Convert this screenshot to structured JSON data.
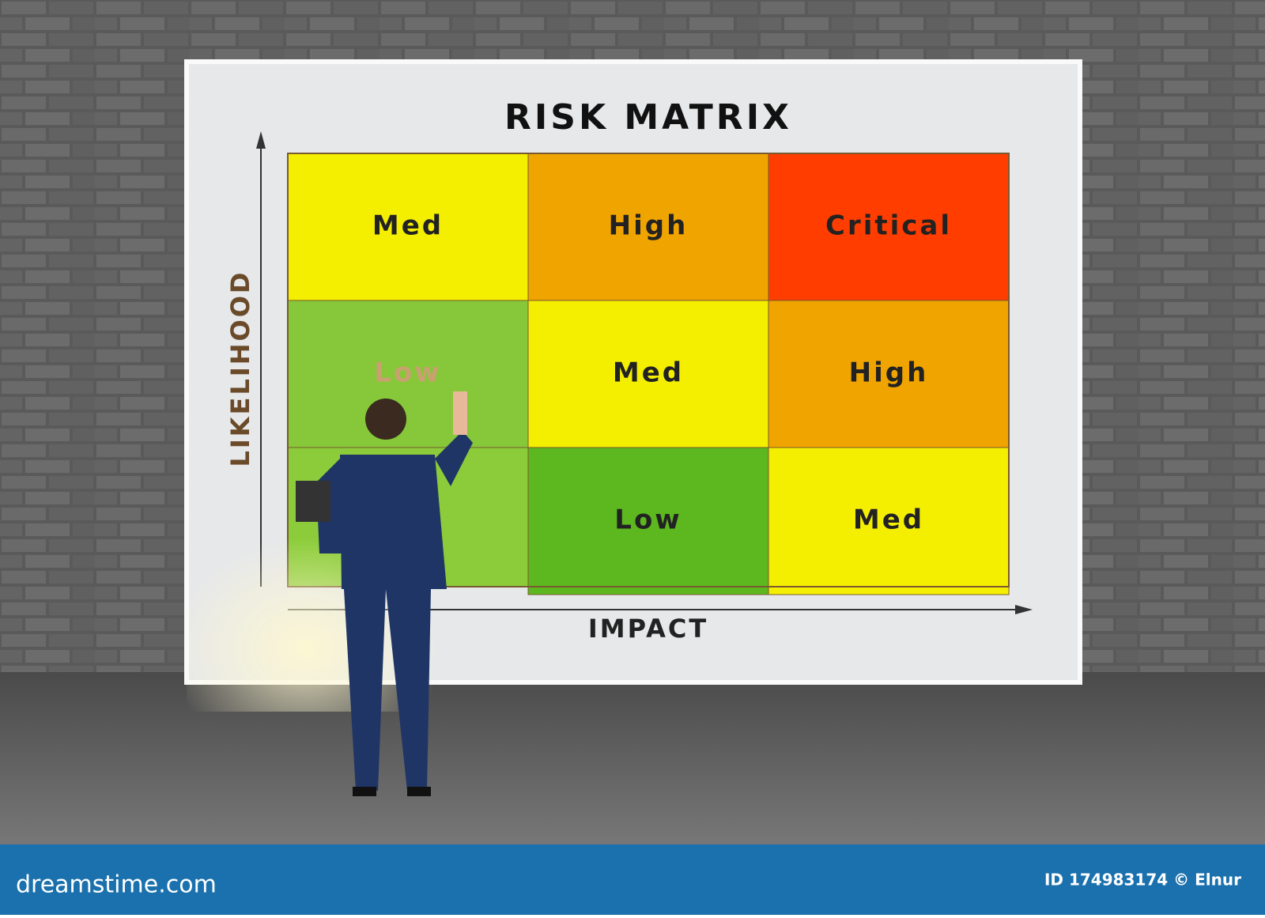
{
  "title": "RISK MATRIX",
  "y_axis_label": "LIKELIHOOD",
  "x_axis_label": "IMPACT",
  "matrix": {
    "cells": [
      {
        "row": 0,
        "col": 0,
        "label": "Med",
        "color": "#f4ee00"
      },
      {
        "row": 0,
        "col": 1,
        "label": "High",
        "color": "#f0a400"
      },
      {
        "row": 0,
        "col": 2,
        "label": "Critical",
        "color": "#ff3d00"
      },
      {
        "row": 1,
        "col": 0,
        "label": "Low",
        "color": "#86c83a"
      },
      {
        "row": 1,
        "col": 1,
        "label": "Med",
        "color": "#f4ee00"
      },
      {
        "row": 1,
        "col": 2,
        "label": "High",
        "color": "#f0a400"
      },
      {
        "row": 2,
        "col": 1,
        "label": "Low",
        "color": "#5cb81e"
      },
      {
        "row": 2,
        "col": 2,
        "label": "Med",
        "color": "#f4ee00"
      }
    ]
  },
  "footer": {
    "site": "dreamstime.com",
    "credit": "ID 174983174 © Elnur"
  }
}
